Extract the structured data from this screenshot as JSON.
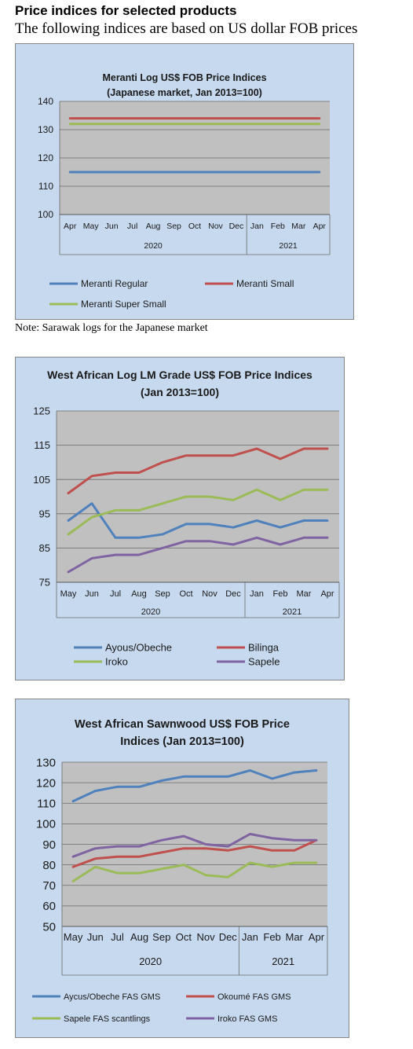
{
  "page": {
    "heading": "Price indices for selected products",
    "subheading": "The following indices are based on US dollar FOB prices",
    "note": "Note: Sarawak logs for the Japanese market"
  },
  "chart_data": [
    {
      "type": "line",
      "title": "Meranti Log US$ FOB Price Indices",
      "subtitle": "(Japanese market, Jan 2013=100)",
      "categories": [
        "Apr",
        "May",
        "Jun",
        "Jul",
        "Aug",
        "Sep",
        "Oct",
        "Nov",
        "Dec",
        "Jan",
        "Feb",
        "Mar",
        "Apr"
      ],
      "year_groups": [
        {
          "label": "2020",
          "count": 9
        },
        {
          "label": "2021",
          "count": 4
        }
      ],
      "ylim": [
        100,
        140
      ],
      "yticks": [
        100,
        110,
        120,
        130,
        140
      ],
      "grid": true,
      "legend_position": "bottom",
      "series": [
        {
          "name": "Meranti Regular",
          "color": "#4f81bd",
          "values": [
            115,
            115,
            115,
            115,
            115,
            115,
            115,
            115,
            115,
            115,
            115,
            115,
            115
          ]
        },
        {
          "name": "Meranti Small",
          "color": "#c0504d",
          "values": [
            134,
            134,
            134,
            134,
            134,
            134,
            134,
            134,
            134,
            134,
            134,
            134,
            134
          ]
        },
        {
          "name": "Meranti Super Small",
          "color": "#9bbb59",
          "values": [
            132,
            132,
            132,
            132,
            132,
            132,
            132,
            132,
            132,
            132,
            132,
            132,
            132
          ]
        }
      ]
    },
    {
      "type": "line",
      "title": "West African Log LM Grade US$ FOB Price Indices",
      "subtitle": "(Jan 2013=100)",
      "categories": [
        "May",
        "Jun",
        "Jul",
        "Aug",
        "Sep",
        "Oct",
        "Nov",
        "Dec",
        "Jan",
        "Feb",
        "Mar",
        "Apr"
      ],
      "year_groups": [
        {
          "label": "2020",
          "count": 8
        },
        {
          "label": "2021",
          "count": 4
        }
      ],
      "ylim": [
        75,
        125
      ],
      "yticks": [
        75,
        85,
        95,
        105,
        115,
        125
      ],
      "grid": true,
      "legend_position": "bottom",
      "series": [
        {
          "name": "Ayous/Obeche",
          "color": "#4f81bd",
          "values": [
            93,
            98,
            88,
            88,
            89,
            92,
            92,
            91,
            93,
            91,
            93,
            93
          ]
        },
        {
          "name": "Bilinga",
          "color": "#c0504d",
          "values": [
            101,
            106,
            107,
            107,
            110,
            112,
            112,
            112,
            114,
            111,
            114,
            114
          ]
        },
        {
          "name": "Iroko",
          "color": "#9bbb59",
          "values": [
            89,
            94,
            96,
            96,
            98,
            100,
            100,
            99,
            102,
            99,
            102,
            102
          ]
        },
        {
          "name": "Sapele",
          "color": "#8064a2",
          "values": [
            78,
            82,
            83,
            83,
            85,
            87,
            87,
            86,
            88,
            86,
            88,
            88
          ]
        }
      ]
    },
    {
      "type": "line",
      "title": "West African Sawnwood US$ FOB Price",
      "subtitle": "Indices (Jan 2013=100)",
      "categories": [
        "May",
        "Jun",
        "Jul",
        "Aug",
        "Sep",
        "Oct",
        "Nov",
        "Dec",
        "Jan",
        "Feb",
        "Mar",
        "Apr"
      ],
      "year_groups": [
        {
          "label": "2020",
          "count": 8
        },
        {
          "label": "2021",
          "count": 4
        }
      ],
      "ylim": [
        50,
        130
      ],
      "yticks": [
        50,
        60,
        70,
        80,
        90,
        100,
        110,
        120,
        130
      ],
      "grid": true,
      "legend_position": "bottom",
      "series": [
        {
          "name": "Aycus/Obeche FAS GMS",
          "color": "#4f81bd",
          "values": [
            111,
            116,
            118,
            118,
            121,
            123,
            123,
            123,
            126,
            122,
            125,
            126
          ]
        },
        {
          "name": "Okoumé FAS GMS",
          "color": "#c0504d",
          "values": [
            79,
            83,
            84,
            84,
            86,
            88,
            88,
            87,
            89,
            87,
            87,
            92
          ]
        },
        {
          "name": "Sapele FAS scantlings",
          "color": "#9bbb59",
          "values": [
            72,
            79,
            76,
            76,
            78,
            80,
            75,
            74,
            81,
            79,
            81,
            81
          ]
        },
        {
          "name": "Iroko FAS GMS",
          "color": "#8064a2",
          "values": [
            84,
            88,
            89,
            89,
            92,
            94,
            90,
            89,
            95,
            93,
            92,
            92
          ]
        }
      ]
    }
  ]
}
